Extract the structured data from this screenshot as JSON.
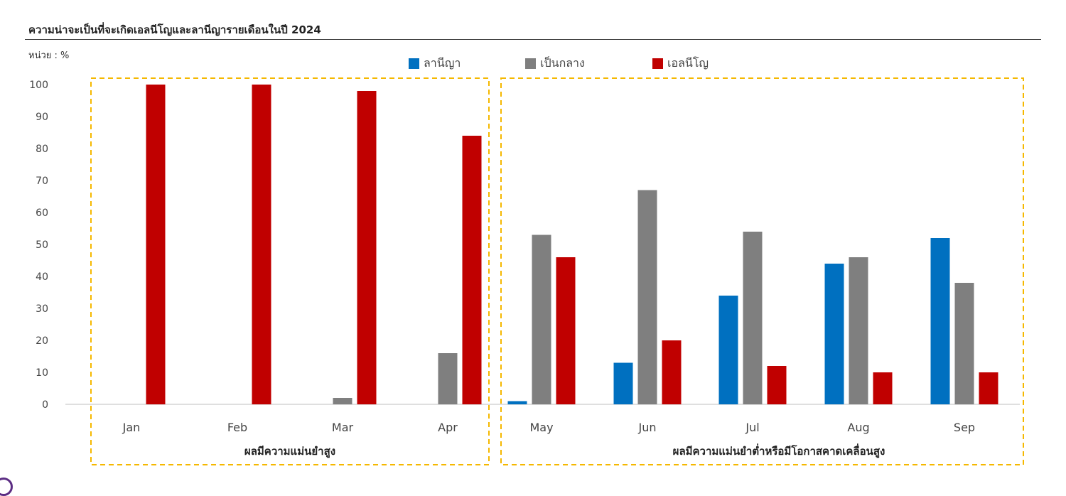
{
  "header": {
    "unit": "หน่วย : %"
  },
  "colors": {
    "la_nina": "#0070c0",
    "neutral": "#7f7f7f",
    "el_nino": "#c00000",
    "group_border": "#f5b800"
  },
  "groups": [
    {
      "label": "ผลมีความแม่นยำสูง",
      "categories": [
        "Jan",
        "Feb",
        "Mar",
        "Apr"
      ]
    },
    {
      "label": "ผลมีความแม่นยำต่ำหรือมีโอกาสคาดเคลื่อนสูง",
      "categories": [
        "May",
        "Jun",
        "Jul",
        "Aug",
        "Sep"
      ]
    }
  ],
  "chart_data": {
    "type": "bar",
    "title": "ความน่าจะเป็นที่จะเกิดเอลนีโญและลานีญารายเดือนในปี 2024",
    "ylabel": "หน่วย : %",
    "ylim": [
      0,
      100
    ],
    "yticks": [
      0,
      10,
      20,
      30,
      40,
      50,
      60,
      70,
      80,
      90,
      100
    ],
    "categories": [
      "Jan",
      "Feb",
      "Mar",
      "Apr",
      "May",
      "Jun",
      "Jul",
      "Aug",
      "Sep"
    ],
    "series": [
      {
        "name": "ลานีญา",
        "color": "#0070c0",
        "values": [
          0,
          0,
          0,
          0,
          1,
          13,
          34,
          44,
          52
        ]
      },
      {
        "name": "เป็นกลาง",
        "color": "#7f7f7f",
        "values": [
          0,
          0,
          2,
          16,
          53,
          67,
          54,
          46,
          38
        ]
      },
      {
        "name": "เอลนีโญ",
        "color": "#c00000",
        "values": [
          100,
          100,
          98,
          84,
          46,
          20,
          12,
          10,
          10
        ]
      }
    ],
    "legend": "top-center",
    "grid": false
  }
}
